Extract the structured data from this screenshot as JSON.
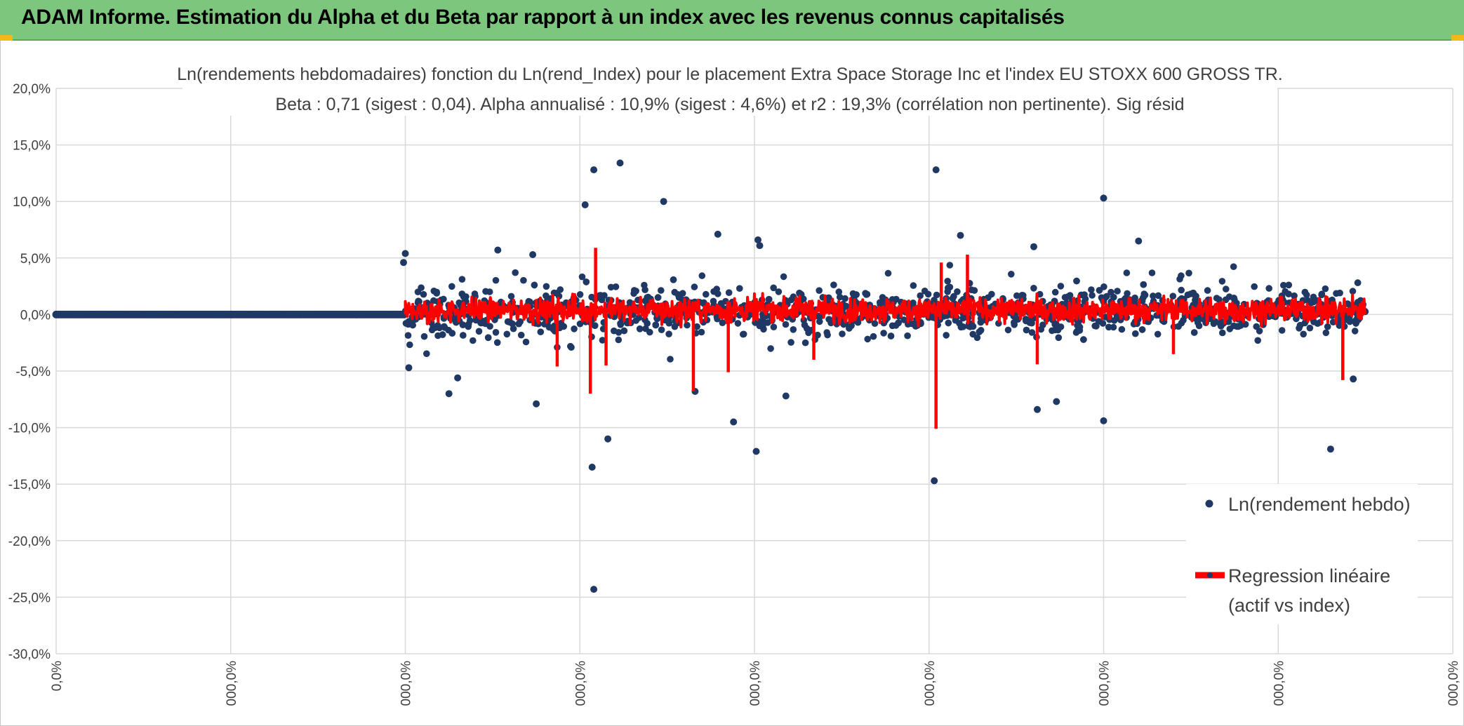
{
  "header": {
    "title": "ADAM Informe. Estimation du Alpha et du Beta par rapport à un index avec les revenus connus capitalisés"
  },
  "colors": {
    "banner": "#7dc67e",
    "points": "#1f3864",
    "regression": "#ff0000",
    "grid": "#d9d9d9"
  },
  "chart_data": {
    "type": "scatter",
    "title": "Ln(rendements hebdomadaires) fonction du Ln(rend_Index) pour le placement Extra Space Storage Inc et l'index EU STOXX 600 GROSS TR.",
    "subtitle": "Beta : 0,71 (sigest : 0,04). Alpha annualisé : 10,9% (sigest : 4,6%) et r2 : 19,3% (corrélation non pertinente). Sig résid",
    "y_ticks": [
      "20,0%",
      "15,0%",
      "10,0%",
      "5,0%",
      "0,0%",
      "-5,0%",
      "-10,0%",
      "-15,0%",
      "-20,0%",
      "-25,0%",
      "-30,0%"
    ],
    "y_tick_values": [
      20,
      15,
      10,
      5,
      0,
      -5,
      -10,
      -15,
      -20,
      -25,
      -30
    ],
    "ylim": [
      -30,
      20
    ],
    "x_ticks": [
      "0,0%",
      "000,0%",
      "000,0%",
      "000,0%",
      "000,0%",
      "000,0%",
      "000,0%",
      "000,0%",
      "000,0%"
    ],
    "xlim": [
      0,
      8
    ],
    "grid": true,
    "legend_position": "right",
    "series": [
      {
        "name": "Ln(rendement hebdo)",
        "kind": "points",
        "flat_segment": {
          "x_start": 0,
          "x_end": 2,
          "y": 0
        },
        "active_range": {
          "x_start": 2,
          "x_end": 7.5
        },
        "typical_spread": [
          -5,
          5
        ],
        "outliers": [
          {
            "x": 3.08,
            "y": -24.3
          },
          {
            "x": 3.08,
            "y": 12.8
          },
          {
            "x": 3.23,
            "y": 13.4
          },
          {
            "x": 3.07,
            "y": -13.5
          },
          {
            "x": 3.16,
            "y": -11.0
          },
          {
            "x": 3.03,
            "y": 9.7
          },
          {
            "x": 3.48,
            "y": 10.0
          },
          {
            "x": 4.01,
            "y": -12.1
          },
          {
            "x": 4.02,
            "y": 6.6
          },
          {
            "x": 3.88,
            "y": -9.5
          },
          {
            "x": 4.03,
            "y": 6.1
          },
          {
            "x": 5.04,
            "y": 12.8
          },
          {
            "x": 5.03,
            "y": -14.7
          },
          {
            "x": 6.0,
            "y": 10.3
          },
          {
            "x": 6.0,
            "y": -9.4
          },
          {
            "x": 5.62,
            "y": -8.4
          },
          {
            "x": 5.73,
            "y": -7.7
          },
          {
            "x": 7.3,
            "y": -11.9
          },
          {
            "x": 7.43,
            "y": -5.7
          },
          {
            "x": 2.53,
            "y": 5.7
          },
          {
            "x": 2.73,
            "y": 5.3
          },
          {
            "x": 2.0,
            "y": 5.4
          },
          {
            "x": 1.99,
            "y": 4.6
          },
          {
            "x": 2.02,
            "y": -4.7
          },
          {
            "x": 2.25,
            "y": -7.0
          },
          {
            "x": 2.3,
            "y": -5.6
          },
          {
            "x": 2.75,
            "y": -7.9
          },
          {
            "x": 3.79,
            "y": 7.1
          },
          {
            "x": 3.66,
            "y": -6.8
          },
          {
            "x": 4.18,
            "y": -7.2
          },
          {
            "x": 5.6,
            "y": 6.0
          },
          {
            "x": 6.2,
            "y": 6.5
          },
          {
            "x": 5.18,
            "y": 7.0
          }
        ]
      },
      {
        "name": "Regression linéaire (actif vs index)",
        "kind": "line",
        "typical_range": [
          -2,
          2
        ],
        "spikes": [
          {
            "x": 3.09,
            "y": 5.9
          },
          {
            "x": 3.06,
            "y": -7.0
          },
          {
            "x": 3.15,
            "y": -4.5
          },
          {
            "x": 3.65,
            "y": -6.8
          },
          {
            "x": 3.85,
            "y": -5.1
          },
          {
            "x": 5.04,
            "y": -10.1
          },
          {
            "x": 5.07,
            "y": 4.6
          },
          {
            "x": 5.22,
            "y": 5.3
          },
          {
            "x": 5.62,
            "y": -4.4
          },
          {
            "x": 7.37,
            "y": -5.8
          },
          {
            "x": 2.87,
            "y": -4.6
          },
          {
            "x": 4.34,
            "y": -4.0
          },
          {
            "x": 6.4,
            "y": -3.5
          }
        ]
      }
    ],
    "legend": [
      {
        "label": "Ln(rendement hebdo)",
        "marker": "point"
      },
      {
        "label_line1": "Regression linéaire",
        "label_line2": "(actif vs index)",
        "marker": "line"
      }
    ]
  }
}
